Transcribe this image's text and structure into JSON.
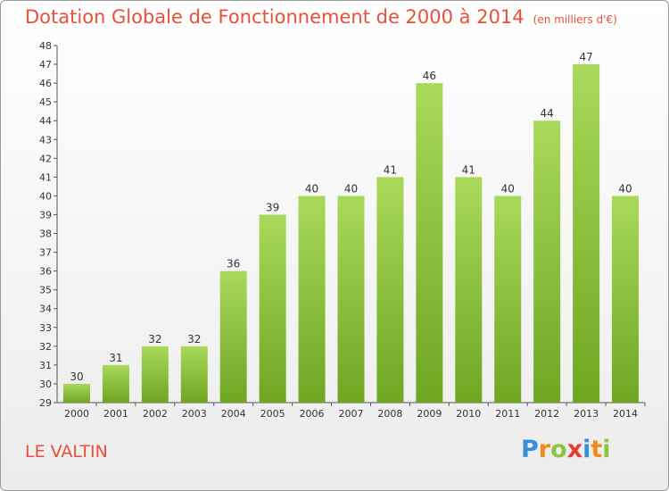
{
  "chart_data": {
    "type": "bar",
    "title": "Dotation Globale de Fonctionnement de 2000 à 2014",
    "subtitle": "(en milliers d'€)",
    "categories": [
      "2000",
      "2001",
      "2002",
      "2003",
      "2004",
      "2005",
      "2006",
      "2007",
      "2008",
      "2009",
      "2010",
      "2011",
      "2012",
      "2013",
      "2014"
    ],
    "values": [
      30,
      31,
      32,
      32,
      36,
      39,
      40,
      40,
      41,
      46,
      41,
      40,
      44,
      47,
      40
    ],
    "ylim": [
      29,
      48
    ],
    "yticks": [
      29,
      30,
      31,
      32,
      33,
      34,
      35,
      36,
      37,
      38,
      39,
      40,
      41,
      42,
      43,
      44,
      45,
      46,
      47,
      48
    ],
    "xlabel": "",
    "ylabel": "",
    "grid": false,
    "legend": "none"
  },
  "location": "LE VALTIN",
  "logo": {
    "letters": [
      "P",
      "r",
      "o",
      "x",
      "i",
      "t",
      "i"
    ],
    "colors": [
      "#3a8fd6",
      "#f28a1c",
      "#8cc63f",
      "#e83a2e",
      "#3a8fd6",
      "#f28a1c",
      "#8cc63f"
    ]
  },
  "colors": {
    "bar_top": "#a9d95a",
    "bar_bottom": "#6ea622",
    "title": "#e8503a",
    "axis": "#555555"
  }
}
